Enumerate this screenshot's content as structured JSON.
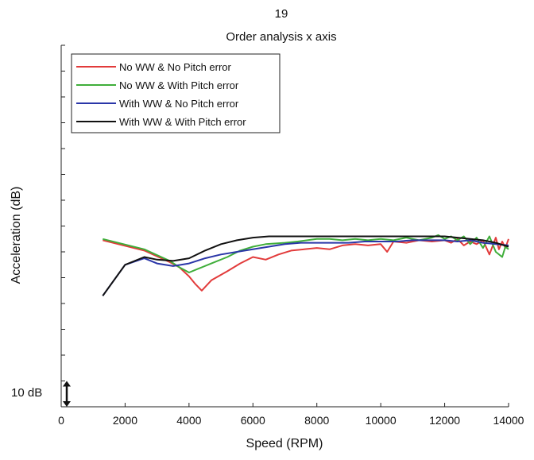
{
  "chart_data": {
    "type": "line",
    "title": "19",
    "subtitle": "Order analysis x axis",
    "xlabel": "Speed (RPM)",
    "ylabel": "Acceleration (dB)",
    "xlim": [
      0,
      14000
    ],
    "xticks": [
      0,
      2000,
      4000,
      6000,
      8000,
      10000,
      12000,
      14000
    ],
    "ylim": [
      0,
      14
    ],
    "yticks": [
      1,
      2,
      3,
      4,
      5,
      6,
      7,
      8,
      9,
      10,
      11,
      12,
      13,
      14
    ],
    "show_y_tick_labels": false,
    "grid": false,
    "legend_position": "top-left",
    "scale_marker": {
      "label": "10 dB",
      "from": 0,
      "to": 1
    },
    "series": [
      {
        "name": "No WW & No Pitch error",
        "color": "#e23b3b",
        "points": [
          [
            1300,
            6.45
          ],
          [
            2600,
            6.05
          ],
          [
            3400,
            5.6
          ],
          [
            3700,
            5.4
          ],
          [
            4000,
            5.05
          ],
          [
            4200,
            4.75
          ],
          [
            4400,
            4.5
          ],
          [
            4700,
            4.9
          ],
          [
            5200,
            5.25
          ],
          [
            5600,
            5.55
          ],
          [
            6000,
            5.8
          ],
          [
            6400,
            5.7
          ],
          [
            6800,
            5.9
          ],
          [
            7200,
            6.05
          ],
          [
            7600,
            6.1
          ],
          [
            8000,
            6.15
          ],
          [
            8400,
            6.1
          ],
          [
            8800,
            6.25
          ],
          [
            9200,
            6.3
          ],
          [
            9600,
            6.25
          ],
          [
            10000,
            6.3
          ],
          [
            10200,
            6.0
          ],
          [
            10400,
            6.4
          ],
          [
            10800,
            6.35
          ],
          [
            11200,
            6.45
          ],
          [
            11600,
            6.4
          ],
          [
            12000,
            6.45
          ],
          [
            12200,
            6.35
          ],
          [
            12400,
            6.5
          ],
          [
            12600,
            6.25
          ],
          [
            12800,
            6.4
          ],
          [
            13000,
            6.3
          ],
          [
            13200,
            6.45
          ],
          [
            13400,
            5.9
          ],
          [
            13600,
            6.55
          ],
          [
            13700,
            6.1
          ],
          [
            13800,
            6.4
          ],
          [
            13900,
            6.15
          ],
          [
            14000,
            6.5
          ]
        ]
      },
      {
        "name": "No WW & With Pitch error",
        "color": "#3fae3a",
        "points": [
          [
            1300,
            6.5
          ],
          [
            2600,
            6.1
          ],
          [
            3400,
            5.65
          ],
          [
            3700,
            5.4
          ],
          [
            4000,
            5.2
          ],
          [
            4300,
            5.35
          ],
          [
            4700,
            5.55
          ],
          [
            5200,
            5.8
          ],
          [
            5600,
            6.05
          ],
          [
            6000,
            6.2
          ],
          [
            6400,
            6.3
          ],
          [
            7000,
            6.35
          ],
          [
            7400,
            6.4
          ],
          [
            8000,
            6.5
          ],
          [
            8400,
            6.5
          ],
          [
            8800,
            6.45
          ],
          [
            9200,
            6.5
          ],
          [
            9600,
            6.45
          ],
          [
            10000,
            6.5
          ],
          [
            10400,
            6.45
          ],
          [
            10800,
            6.55
          ],
          [
            11200,
            6.45
          ],
          [
            11600,
            6.55
          ],
          [
            11800,
            6.65
          ],
          [
            12000,
            6.5
          ],
          [
            12200,
            6.6
          ],
          [
            12400,
            6.45
          ],
          [
            12600,
            6.6
          ],
          [
            12800,
            6.3
          ],
          [
            13000,
            6.55
          ],
          [
            13200,
            6.15
          ],
          [
            13400,
            6.6
          ],
          [
            13600,
            6.0
          ],
          [
            13800,
            5.8
          ],
          [
            13900,
            6.2
          ],
          [
            14000,
            6.1
          ]
        ]
      },
      {
        "name": "With WW & No Pitch error",
        "color": "#2a36a8",
        "points": [
          [
            1300,
            4.3
          ],
          [
            2000,
            5.5
          ],
          [
            2600,
            5.75
          ],
          [
            3000,
            5.55
          ],
          [
            3500,
            5.45
          ],
          [
            4000,
            5.55
          ],
          [
            4500,
            5.75
          ],
          [
            5000,
            5.9
          ],
          [
            5500,
            6.0
          ],
          [
            6000,
            6.1
          ],
          [
            6500,
            6.2
          ],
          [
            7000,
            6.3
          ],
          [
            7500,
            6.35
          ],
          [
            8000,
            6.35
          ],
          [
            8500,
            6.35
          ],
          [
            9000,
            6.35
          ],
          [
            9500,
            6.4
          ],
          [
            10000,
            6.4
          ],
          [
            10500,
            6.4
          ],
          [
            11000,
            6.45
          ],
          [
            11500,
            6.45
          ],
          [
            12000,
            6.45
          ],
          [
            12400,
            6.4
          ],
          [
            12800,
            6.45
          ],
          [
            13200,
            6.35
          ],
          [
            13600,
            6.3
          ],
          [
            14000,
            6.25
          ]
        ]
      },
      {
        "name": "With WW & With Pitch error",
        "color": "#111111",
        "points": [
          [
            1300,
            4.3
          ],
          [
            2000,
            5.5
          ],
          [
            2600,
            5.8
          ],
          [
            3000,
            5.7
          ],
          [
            3500,
            5.65
          ],
          [
            4000,
            5.75
          ],
          [
            4500,
            6.05
          ],
          [
            5000,
            6.3
          ],
          [
            5500,
            6.45
          ],
          [
            6000,
            6.55
          ],
          [
            6500,
            6.6
          ],
          [
            7000,
            6.6
          ],
          [
            7500,
            6.6
          ],
          [
            8000,
            6.6
          ],
          [
            8500,
            6.6
          ],
          [
            9000,
            6.6
          ],
          [
            9500,
            6.6
          ],
          [
            10000,
            6.6
          ],
          [
            10500,
            6.6
          ],
          [
            11000,
            6.6
          ],
          [
            11500,
            6.6
          ],
          [
            12000,
            6.6
          ],
          [
            12400,
            6.55
          ],
          [
            12800,
            6.5
          ],
          [
            13200,
            6.45
          ],
          [
            13600,
            6.35
          ],
          [
            14000,
            6.2
          ]
        ]
      }
    ]
  }
}
